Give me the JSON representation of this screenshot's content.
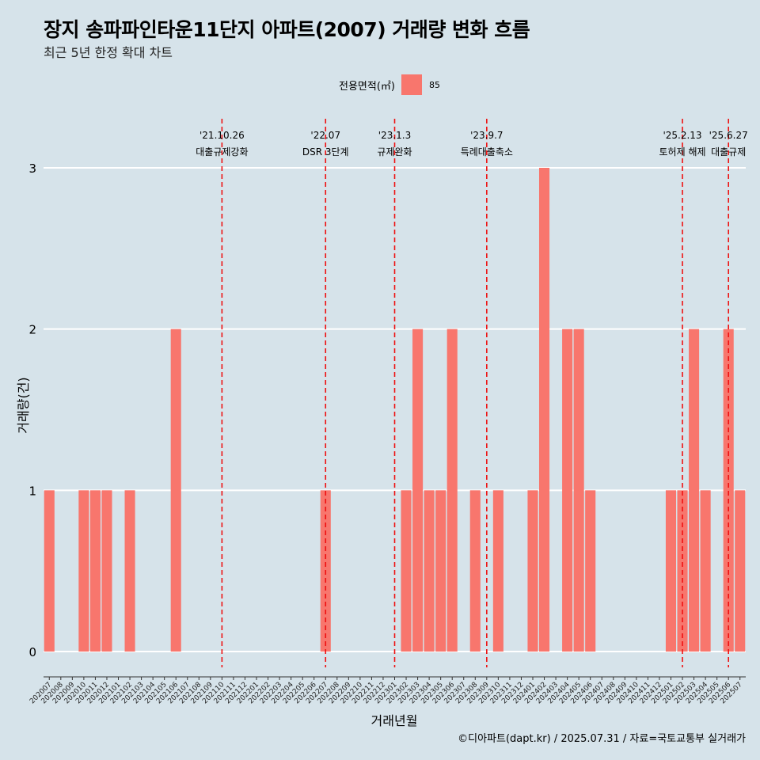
{
  "title": "장지 송파파인타운11단지 아파트(2007) 거래량 변화 흐름",
  "subtitle": "최근 5년 한정 확대 차트",
  "legend": {
    "title": "전용면적(㎡)",
    "label": "85"
  },
  "caption": "©디아파트(dapt.kr) / 2025.07.31 / 자료=국토교통부 실거래가",
  "colors": {
    "background": "#d6e3ea",
    "bar": "#f8766d",
    "grid": "#ffffff",
    "event_line": "#ee1111"
  },
  "chart_data": {
    "type": "bar",
    "xlabel": "거래년월",
    "ylabel": "거래량(건)",
    "ylim": [
      0,
      3
    ],
    "yticks": [
      0,
      1,
      2,
      3
    ],
    "grid": true,
    "legend_position": "top",
    "categories": [
      "202007",
      "202008",
      "202009",
      "202010",
      "202011",
      "202012",
      "202101",
      "202102",
      "202103",
      "202104",
      "202105",
      "202106",
      "202107",
      "202108",
      "202109",
      "202110",
      "202111",
      "202112",
      "202201",
      "202202",
      "202203",
      "202204",
      "202205",
      "202206",
      "202207",
      "202208",
      "202209",
      "202210",
      "202211",
      "202212",
      "202301",
      "202302",
      "202303",
      "202304",
      "202305",
      "202306",
      "202307",
      "202308",
      "202309",
      "202310",
      "202311",
      "202312",
      "202401",
      "202402",
      "202403",
      "202404",
      "202405",
      "202406",
      "202407",
      "202408",
      "202409",
      "202410",
      "202411",
      "202412",
      "202501",
      "202502",
      "202503",
      "202504",
      "202505",
      "202506",
      "202507"
    ],
    "series": [
      {
        "name": "85",
        "values": [
          1,
          0,
          0,
          1,
          1,
          1,
          0,
          1,
          0,
          0,
          0,
          2,
          0,
          0,
          0,
          0,
          0,
          0,
          0,
          0,
          0,
          0,
          0,
          0,
          1,
          0,
          0,
          0,
          0,
          0,
          0,
          1,
          2,
          1,
          1,
          2,
          0,
          1,
          0,
          1,
          0,
          0,
          1,
          3,
          0,
          2,
          2,
          1,
          0,
          0,
          0,
          0,
          0,
          0,
          1,
          1,
          2,
          1,
          0,
          2,
          1
        ]
      }
    ],
    "events": [
      {
        "date": "'21.10.26",
        "label": "대출규제강화",
        "pos": 15.5
      },
      {
        "date": "'22.07",
        "label": "DSR 3단계",
        "pos": 24.5
      },
      {
        "date": "'23.1.3",
        "label": "규제완화",
        "pos": 30.5
      },
      {
        "date": "'23.9.7",
        "label": "특례대출축소",
        "pos": 38.5
      },
      {
        "date": "'25.2.13",
        "label": "토허제 해제",
        "pos": 55.5
      },
      {
        "date": "'25.6.27",
        "label": "대출규제",
        "pos": 59.5
      }
    ]
  }
}
